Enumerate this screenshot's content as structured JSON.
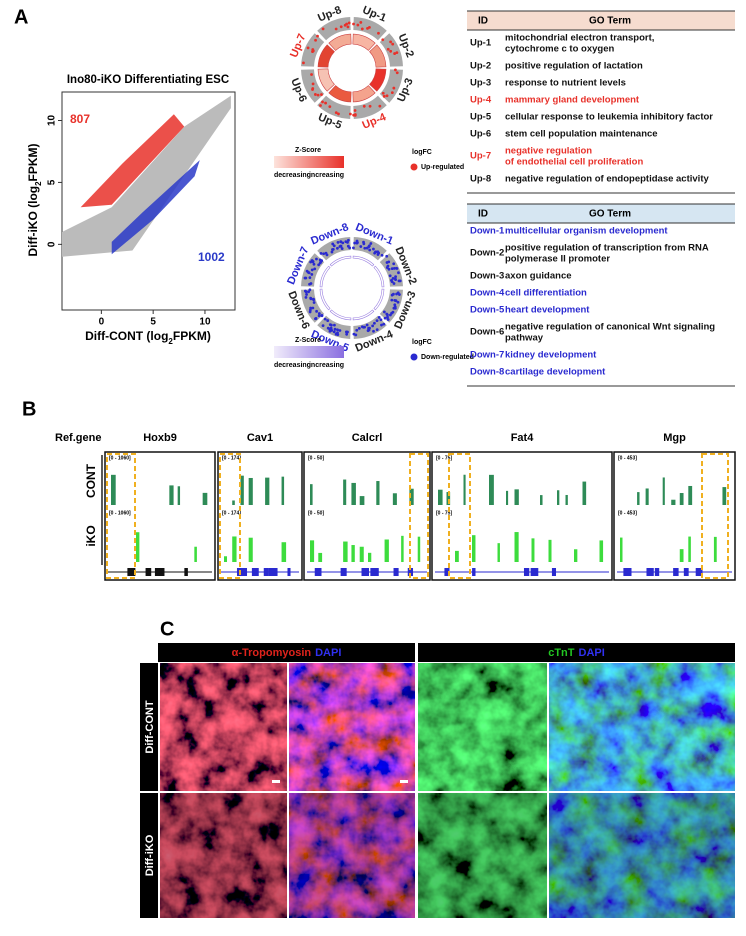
{
  "panel_labels": [
    "A",
    "B",
    "C"
  ],
  "scatter": {
    "title": "Ino80-iKO Differentiating ESC",
    "xlabel": [
      "Diff-CONT (log",
      "2",
      "FPKM)"
    ],
    "ylabel": [
      "Diff-iKO (log",
      "2",
      "FPKM)"
    ],
    "xlim": [
      -3.8,
      12.9
    ],
    "ylim": [
      -5.3,
      12.3
    ],
    "xticks": [
      0,
      5,
      10
    ],
    "yticks": [
      0,
      5,
      10
    ],
    "up_count": 807,
    "down_count": 1002,
    "up_color": "#e8312a",
    "down_color": "#2a3ac8"
  },
  "circos": [
    {
      "labels": [
        {
          "text": "Up-1",
          "color": "#222"
        },
        {
          "text": "Up-2",
          "color": "#222"
        },
        {
          "text": "Up-3",
          "color": "#222"
        },
        {
          "text": "Up-4",
          "color": "#e8312a"
        },
        {
          "text": "Up-5",
          "color": "#222"
        },
        {
          "text": "Up-6",
          "color": "#222"
        },
        {
          "text": "Up-7",
          "color": "#e8312a"
        },
        {
          "text": "Up-8",
          "color": "#222"
        }
      ],
      "zscore": "Z-Score",
      "low": "decreasing",
      "high": "increasing",
      "logfc": "logFC",
      "legend": "Up-regulated",
      "color": "#e8312a"
    },
    {
      "labels": [
        {
          "text": "Down-1",
          "color": "#2a2ad0"
        },
        {
          "text": "Down-2",
          "color": "#222"
        },
        {
          "text": "Down-3",
          "color": "#222"
        },
        {
          "text": "Down-4",
          "color": "#222"
        },
        {
          "text": "Down-5",
          "color": "#2a2ad0"
        },
        {
          "text": "Down-6",
          "color": "#222"
        },
        {
          "text": "Down-7",
          "color": "#2a2ad0"
        },
        {
          "text": "Down-8",
          "color": "#2a2ad0"
        }
      ],
      "zscore": "Z-Score",
      "low": "decreasing",
      "high": "increasing",
      "logfc": "logFC",
      "legend": "Down-regulated",
      "color": "#2a2ad0"
    }
  ],
  "go_tables": [
    {
      "header": [
        "ID",
        "GO Term"
      ],
      "header_color": "#f6dccf",
      "rows": [
        {
          "id": "Up-1",
          "term": [
            "mitochondrial electron transport,",
            "cytochrome c to oxygen"
          ],
          "color": "#111"
        },
        {
          "id": "Up-2",
          "term": [
            "positive regulation of lactation"
          ],
          "color": "#111"
        },
        {
          "id": "Up-3",
          "term": [
            "response to nutrient levels"
          ],
          "color": "#111"
        },
        {
          "id": "Up-4",
          "term": [
            "mammary gland development"
          ],
          "color": "#e8312a"
        },
        {
          "id": "Up-5",
          "term": [
            "cellular response to leukemia inhibitory factor"
          ],
          "color": "#111"
        },
        {
          "id": "Up-6",
          "term": [
            "stem cell population maintenance"
          ],
          "color": "#111"
        },
        {
          "id": "Up-7",
          "term": [
            "negative regulation",
            "of endothelial cell proliferation"
          ],
          "color": "#e8312a"
        },
        {
          "id": "Up-8",
          "term": [
            "negative regulation of endopeptidase activity"
          ],
          "color": "#111"
        }
      ]
    },
    {
      "header": [
        "ID",
        "GO Term"
      ],
      "header_color": "#d6e6f2",
      "rows": [
        {
          "id": "Down-1",
          "term": [
            "multicellular organism development"
          ],
          "color": "#2a2ad0"
        },
        {
          "id": "Down-2",
          "term": [
            "positive regulation of transcription from RNA",
            "polymerase II promoter"
          ],
          "color": "#111"
        },
        {
          "id": "Down-3",
          "term": [
            "axon guidance"
          ],
          "color": "#111"
        },
        {
          "id": "Down-4",
          "term": [
            "cell differentiation"
          ],
          "color": "#2a2ad0"
        },
        {
          "id": "Down-5",
          "term": [
            "heart development"
          ],
          "color": "#2a2ad0"
        },
        {
          "id": "Down-6",
          "term": [
            "negative regulation of canonical Wnt signaling",
            "pathway"
          ],
          "color": "#111"
        },
        {
          "id": "Down-7",
          "term": [
            "kidney development"
          ],
          "color": "#2a2ad0"
        },
        {
          "id": "Down-8",
          "term": [
            "cartilage development"
          ],
          "color": "#2a2ad0"
        }
      ]
    }
  ],
  "tracks": {
    "ref": "Ref.gene",
    "conditions": [
      "CONT",
      "iKO"
    ],
    "genes": [
      {
        "name": "Hoxb9",
        "range": "[0 - 1060]"
      },
      {
        "name": "Cav1",
        "range": "[0 - 174]"
      },
      {
        "name": "Calcrl",
        "range": "[0 - 50]"
      },
      {
        "name": "Fat4",
        "range": "[0 - 75]"
      },
      {
        "name": "Mgp",
        "range": "[0 - 453]"
      }
    ]
  },
  "imaging": {
    "columns": [
      [
        {
          "text": "α-Tropomyosin",
          "color": "#e0231c"
        },
        {
          "text": "DAPI",
          "color": "#3030f0"
        }
      ],
      [
        {
          "text": "cTnT",
          "color": "#22c522"
        },
        {
          "text": "DAPI",
          "color": "#3030f0"
        }
      ]
    ],
    "rows": [
      "Diff-CONT",
      "Diff-iKO"
    ]
  }
}
